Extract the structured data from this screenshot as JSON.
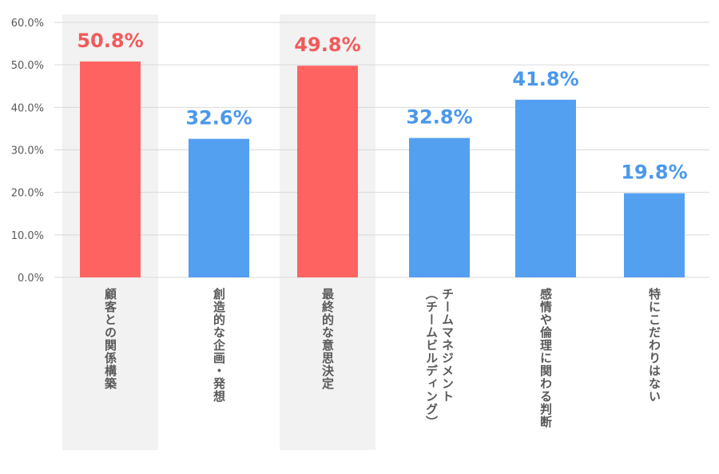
{
  "chart_data": {
    "type": "bar",
    "categories": [
      "顧客との関係構築",
      "創造的な企画・発想",
      "最終的な意思決定",
      "チームマネジメント\n（チームビルディング）",
      "感情や倫理に関わる判断",
      "特にこだわりはない"
    ],
    "values": [
      50.8,
      32.6,
      49.8,
      32.8,
      41.8,
      19.8
    ],
    "data_labels": [
      "50.8%",
      "32.6%",
      "49.8%",
      "32.8%",
      "41.8%",
      "19.8%"
    ],
    "highlighted": [
      true,
      false,
      true,
      false,
      false,
      false
    ],
    "ylim": [
      0,
      60
    ],
    "yticks": [
      "0.0%",
      "10.0%",
      "20.0%",
      "30.0%",
      "40.0%",
      "50.0%",
      "60.0%"
    ],
    "grid": true,
    "colors": {
      "highlight_bar": "#ff6361",
      "normal_bar": "#539ff0",
      "highlight_label": "#f25a5a",
      "normal_label": "#4a98ec",
      "highlight_band": "#f2f2f2",
      "grid": "#d9d9d9",
      "text": "#595959"
    }
  }
}
